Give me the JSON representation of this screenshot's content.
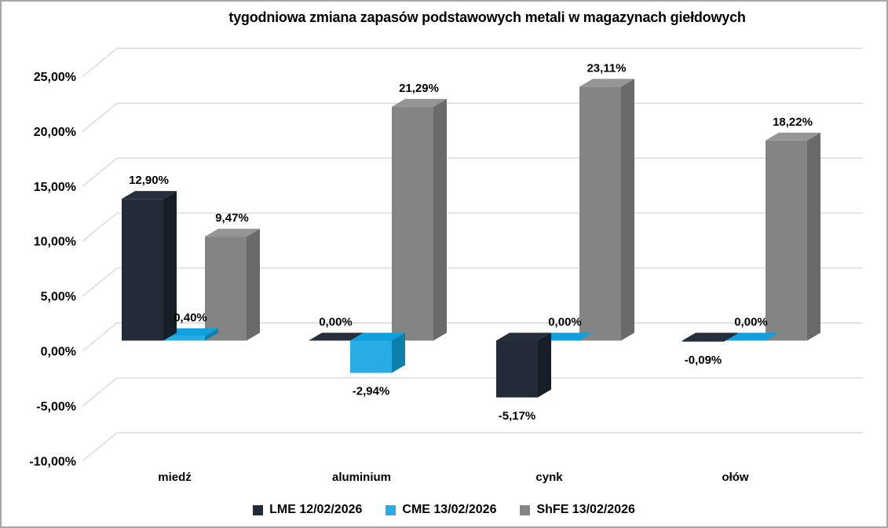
{
  "chart_data": {
    "type": "bar",
    "variant": "3d-clustered-column",
    "title": "tygodniowa zmiana zapasów podstawowych metali w magazynach giełdowych",
    "categories": [
      "miedź",
      "aluminium",
      "cynk",
      "ołów"
    ],
    "series": [
      {
        "name": "LME 12/02/2026",
        "values": [
          12.9,
          0.0,
          -5.17,
          -0.09
        ],
        "labels": [
          "12,90%",
          "0,00%",
          "-5,17%",
          "-0,09%"
        ],
        "colors": {
          "front": "#222b37",
          "top": "#262f3b",
          "side": "#171e27"
        }
      },
      {
        "name": "CME 13/02/2026",
        "values": [
          0.4,
          -2.94,
          0.0,
          0.0
        ],
        "labels": [
          "0,40%",
          "-2,94%",
          "0,00%",
          "0,00%"
        ],
        "colors": {
          "front": "#29ace3",
          "top": "#0ea1dd",
          "side": "#0d7fab"
        }
      },
      {
        "name": "ShFE 13/02/2026",
        "values": [
          9.47,
          21.29,
          23.11,
          18.22
        ],
        "labels": [
          "9,47%",
          "21,29%",
          "23,11%",
          "18,22%"
        ],
        "colors": {
          "front": "#848484",
          "top": "#959595",
          "side": "#6a6a6a"
        }
      }
    ],
    "y_axis": {
      "min": -10,
      "max": 25,
      "step": 5,
      "ticks": [
        {
          "value": 25,
          "label": "25,00%"
        },
        {
          "value": 20,
          "label": "20,00%"
        },
        {
          "value": 15,
          "label": "15,00%"
        },
        {
          "value": 10,
          "label": "10,00%"
        },
        {
          "value": 5,
          "label": "5,00%"
        },
        {
          "value": 0,
          "label": "0,00%"
        },
        {
          "value": -5,
          "label": "-5,00%"
        },
        {
          "value": -10,
          "label": "-10,00%"
        }
      ]
    },
    "gridlines": true,
    "legend_position": "bottom"
  },
  "style_colors": {
    "background": "#ffffff",
    "border": "#a6a6a6",
    "gridline": "#d9d9d9",
    "text": "#000000"
  }
}
